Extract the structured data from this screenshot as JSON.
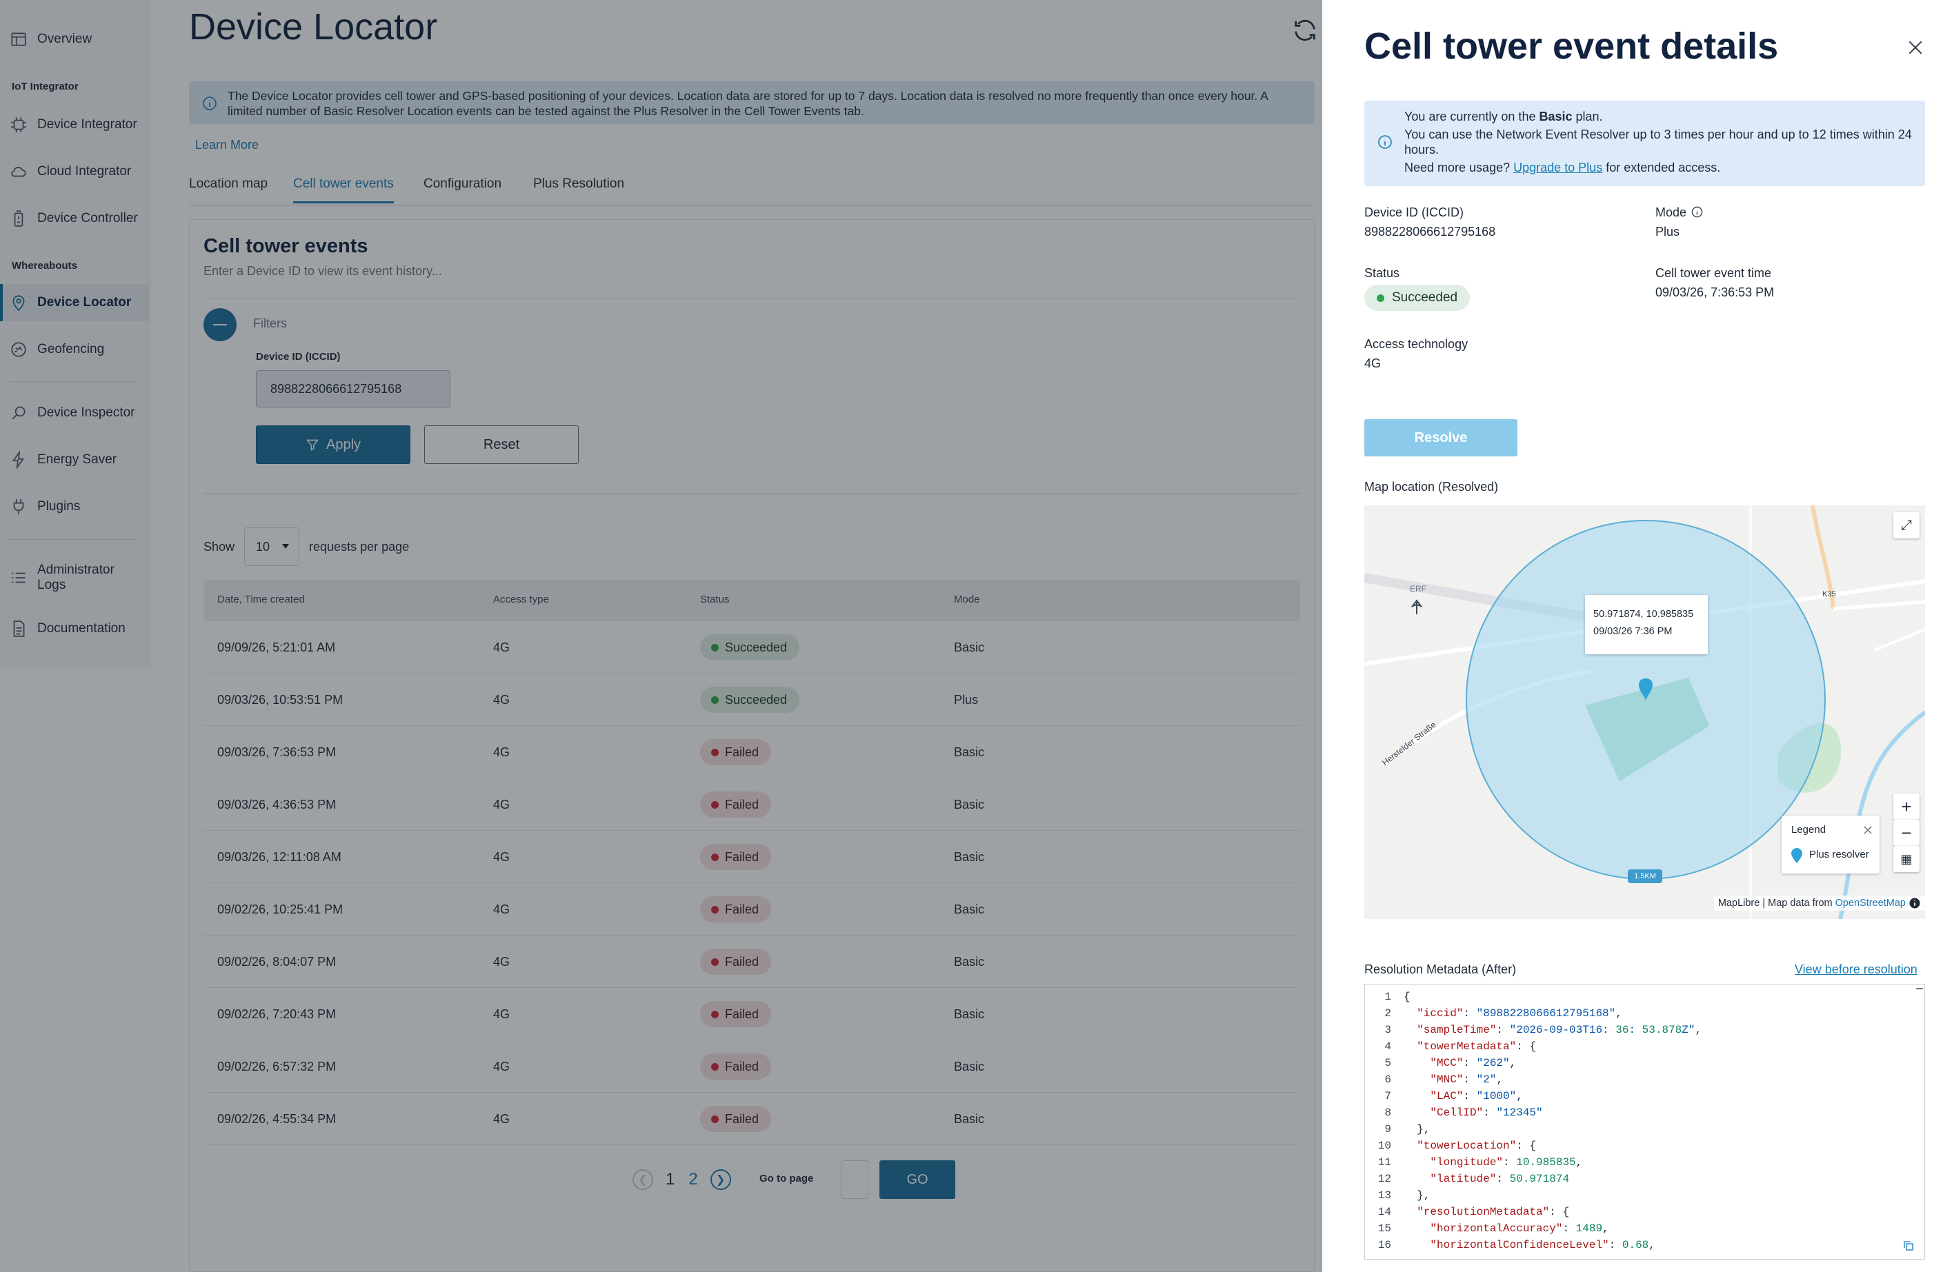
{
  "sidebar": {
    "items": [
      {
        "label": "Overview",
        "icon": "overview-icon"
      },
      {
        "label": "Device Integrator",
        "icon": "device-integrator-icon"
      },
      {
        "label": "Cloud Integrator",
        "icon": "cloud-integrator-icon"
      },
      {
        "label": "Device Controller",
        "icon": "device-controller-icon"
      },
      {
        "label": "Device Locator",
        "icon": "location-pin-icon",
        "active": true
      },
      {
        "label": "Geofencing",
        "icon": "geofencing-icon"
      },
      {
        "label": "Device Inspector",
        "icon": "search-icon"
      },
      {
        "label": "Energy Saver",
        "icon": "lightning-icon"
      },
      {
        "label": "Plugins",
        "icon": "plug-icon"
      },
      {
        "label": "Administrator Logs",
        "icon": "list-icon"
      },
      {
        "label": "Documentation",
        "icon": "document-icon"
      }
    ],
    "sections": [
      "IoT Integrator",
      "Whereabouts"
    ]
  },
  "page": {
    "title": "Device Locator",
    "banner": "The Device Locator provides cell tower and GPS-based positioning of your devices. Location data are stored for up to 7 days. Location data is resolved no more frequently than once every hour. A limited number of Basic Resolver Location events can be tested against the Plus Resolver in the Cell Tower Events tab.",
    "learn_more": "Learn More",
    "tabs": [
      "Location map",
      "Cell tower events",
      "Configuration",
      "Plus Resolution"
    ],
    "active_tab": "Cell tower events"
  },
  "events": {
    "title": "Cell tower events",
    "subtitle": "Enter a Device ID to view its event history...",
    "filters_label": "Filters",
    "device_label": "Device ID (ICCID)",
    "device_value": "8988228066612795168",
    "apply": "Apply",
    "reset": "Reset",
    "show": "Show",
    "per_page_value": "10",
    "per_page_suffix": "requests per page",
    "columns": [
      "Date, Time created",
      "Access type",
      "Status",
      "Mode"
    ],
    "rows": [
      {
        "date": "09/09/26, 5:21:01 AM",
        "access": "4G",
        "status": "Succeeded",
        "ok": true,
        "mode": "Basic"
      },
      {
        "date": "09/03/26, 10:53:51 PM",
        "access": "4G",
        "status": "Succeeded",
        "ok": true,
        "mode": "Plus"
      },
      {
        "date": "09/03/26, 7:36:53 PM",
        "access": "4G",
        "status": "Failed",
        "ok": false,
        "mode": "Basic"
      },
      {
        "date": "09/03/26, 4:36:53 PM",
        "access": "4G",
        "status": "Failed",
        "ok": false,
        "mode": "Basic"
      },
      {
        "date": "09/03/26, 12:11:08 AM",
        "access": "4G",
        "status": "Failed",
        "ok": false,
        "mode": "Basic"
      },
      {
        "date": "09/02/26, 10:25:41 PM",
        "access": "4G",
        "status": "Failed",
        "ok": false,
        "mode": "Basic"
      },
      {
        "date": "09/02/26, 8:04:07 PM",
        "access": "4G",
        "status": "Failed",
        "ok": false,
        "mode": "Basic"
      },
      {
        "date": "09/02/26, 7:20:43 PM",
        "access": "4G",
        "status": "Failed",
        "ok": false,
        "mode": "Basic"
      },
      {
        "date": "09/02/26, 6:57:32 PM",
        "access": "4G",
        "status": "Failed",
        "ok": false,
        "mode": "Basic"
      },
      {
        "date": "09/02/26, 4:55:34 PM",
        "access": "4G",
        "status": "Failed",
        "ok": false,
        "mode": "Basic"
      }
    ],
    "pages": [
      "1",
      "2"
    ],
    "goto_label": "Go to page",
    "go": "GO"
  },
  "drawer": {
    "title": "Cell tower event details",
    "plan_line1_prefix": "You are currently on the ",
    "plan_name": "Basic",
    "plan_line1_suffix": " plan.",
    "plan_line2": "You can use the Network Event Resolver up to 3 times per hour and up to 12 times within 24 hours.",
    "plan_line3_prefix": "Need more usage? ",
    "upgrade_link": "Upgrade to Plus",
    "plan_line3_suffix": " for extended access.",
    "device_label": "Device ID (ICCID)",
    "device_value": "8988228066612795168",
    "mode_label": "Mode",
    "mode_value": "Plus",
    "status_label": "Status",
    "status_value": "Succeeded",
    "time_label": "Cell tower event time",
    "time_value": "09/03/26, 7:36:53 PM",
    "access_label": "Access technology",
    "access_value": "4G",
    "resolve": "Resolve",
    "map_label": "Map location (Resolved)",
    "map": {
      "popup_coords": "50.971874, 10.985835",
      "popup_time": "09/03/26 7:36 PM",
      "place_erf": "ERF",
      "road_label": "Herstelder Straße",
      "road_k35": "K35",
      "scale": "1.5KM",
      "legend_title": "Legend",
      "legend_item": "Plus resolver",
      "attrib_prefix": "MapLibre | Map data from ",
      "attrib_link": "OpenStreetMap",
      "accent": "#2ea3d6"
    },
    "meta_label": "Resolution Metadata (After)",
    "view_before": "View before resolution",
    "code": [
      {
        "n": "1",
        "t": "{"
      },
      {
        "n": "2",
        "t": "  \"iccid\": \"8988228066612795168\","
      },
      {
        "n": "3",
        "t": "  \"sampleTime\": \"2026-09-03T16:36:53.878Z\","
      },
      {
        "n": "4",
        "t": "  \"towerMetadata\": {"
      },
      {
        "n": "5",
        "t": "    \"MCC\": \"262\","
      },
      {
        "n": "6",
        "t": "    \"MNC\": \"2\","
      },
      {
        "n": "7",
        "t": "    \"LAC\": \"1000\","
      },
      {
        "n": "8",
        "t": "    \"CellID\": \"12345\""
      },
      {
        "n": "9",
        "t": "  },"
      },
      {
        "n": "10",
        "t": "  \"towerLocation\": {"
      },
      {
        "n": "11",
        "t": "    \"longitude\": 10.985835,"
      },
      {
        "n": "12",
        "t": "    \"latitude\": 50.971874"
      },
      {
        "n": "13",
        "t": "  },"
      },
      {
        "n": "14",
        "t": "  \"resolutionMetadata\": {"
      },
      {
        "n": "15",
        "t": "    \"horizontalAccuracy\": 1489,"
      },
      {
        "n": "16",
        "t": "    \"horizontalConfidenceLevel\": 0.68,"
      }
    ]
  }
}
